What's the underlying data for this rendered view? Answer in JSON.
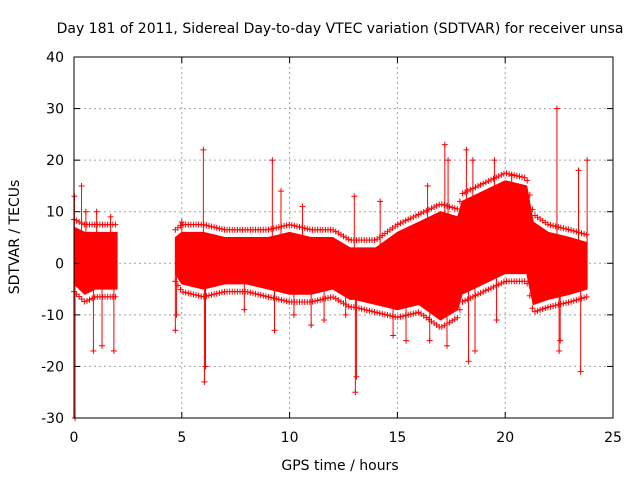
{
  "chart_data": {
    "type": "scatter",
    "title": "Day 181 of 2011, Sidereal Day-to-day VTEC variation (SDTVAR) for receiver unsa",
    "xlabel": "GPS time / hours",
    "ylabel": "SDTVAR / TECUs",
    "xlim": [
      0,
      25
    ],
    "ylim": [
      -30,
      40
    ],
    "xticks": [
      0,
      5,
      10,
      15,
      20,
      25
    ],
    "yticks": [
      -30,
      -20,
      -10,
      0,
      10,
      20,
      30,
      40
    ],
    "grid": true,
    "marker": "plus",
    "series": [
      {
        "name": "SDTVAR",
        "color": "#ff0000",
        "envelope_x": [
          0.0,
          0.5,
          1.0,
          1.5,
          2.0,
          4.7,
          5.0,
          6.0,
          7.0,
          8.0,
          9.0,
          10.0,
          11.0,
          12.0,
          12.8,
          13.0,
          14.0,
          15.0,
          16.0,
          17.0,
          17.8,
          18.0,
          19.0,
          20.0,
          21.0,
          21.3,
          22.0,
          23.0,
          23.8
        ],
        "envelope_upper": [
          7,
          6,
          6,
          6,
          6,
          5,
          6,
          6,
          5,
          5,
          5,
          6,
          5,
          5,
          3,
          3,
          3,
          6,
          8,
          10,
          9,
          12,
          14,
          16,
          15,
          8,
          6,
          5,
          4
        ],
        "envelope_lower": [
          -4,
          -6,
          -5,
          -5,
          -5,
          -2,
          -4,
          -5,
          -4,
          -4,
          -5,
          -6,
          -6,
          -5,
          -7,
          -7,
          -8,
          -9,
          -8,
          -11,
          -9,
          -6,
          -4,
          -2,
          -2,
          -8,
          -7,
          -6,
          -5
        ],
        "spikes_x": [
          0.02,
          0.05,
          0.35,
          0.55,
          0.9,
          1.05,
          1.3,
          1.7,
          1.85,
          4.7,
          4.75,
          5.0,
          6.0,
          6.05,
          6.1,
          7.9,
          9.2,
          9.3,
          9.6,
          10.2,
          10.6,
          11.0,
          11.6,
          12.6,
          13.0,
          13.05,
          13.1,
          14.2,
          14.8,
          15.4,
          16.4,
          16.5,
          17.2,
          17.3,
          17.35,
          18.2,
          18.3,
          18.5,
          18.6,
          19.5,
          19.6,
          20.3,
          20.8,
          22.4,
          22.5,
          22.55,
          23.4,
          23.5,
          23.8
        ],
        "spikes_y": [
          13,
          -30,
          15,
          10,
          -17,
          10,
          -16,
          9,
          -17,
          -13,
          -10,
          8,
          22,
          -23,
          -20,
          -9,
          20,
          -13,
          14,
          -10,
          11,
          -12,
          -11,
          -10,
          13,
          -25,
          -22,
          12,
          -14,
          -15,
          15,
          -15,
          23,
          -16,
          20,
          22,
          -19,
          20,
          -17,
          20,
          -11,
          17,
          10,
          30,
          -17,
          -15,
          18,
          -21,
          20
        ]
      }
    ]
  }
}
